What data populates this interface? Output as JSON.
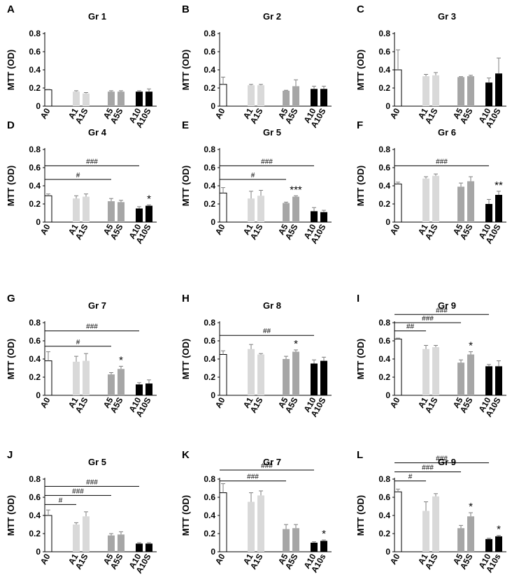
{
  "figure": {
    "ylabel": "MTT (OD)",
    "categories": [
      "A0",
      "A1",
      "A1S",
      "A5",
      "A5S",
      "A10",
      "A10S"
    ],
    "colors": {
      "A0": "#ffffff",
      "A1": "#d9d9d9",
      "A5": "#a6a6a6",
      "A10": "#000000",
      "axis": "#000000",
      "errorbar": "#7f7f7f"
    }
  },
  "chart_data": [
    {
      "panel": "A",
      "title": "Gr 1",
      "type": "bar",
      "ylim": [
        0,
        0.8
      ],
      "ylabel": "MTT (OD)",
      "categories": [
        "A0",
        "A1",
        "A1S",
        "A5",
        "A5S",
        "A10",
        "A10S"
      ],
      "values": [
        0.18,
        0.16,
        0.14,
        0.16,
        0.16,
        0.16,
        0.16
      ],
      "errors": [
        0.005,
        0.01,
        0.01,
        0.01,
        0.01,
        0.01,
        0.03
      ],
      "stars": [],
      "brackets": []
    },
    {
      "panel": "B",
      "title": "Gr 2",
      "type": "bar",
      "ylim": [
        0,
        0.8
      ],
      "ylabel": "MTT (OD)",
      "categories": [
        "A0",
        "A1",
        "A1S",
        "A5",
        "A5S",
        "A10",
        "A10S"
      ],
      "values": [
        0.24,
        0.23,
        0.23,
        0.17,
        0.22,
        0.19,
        0.19
      ],
      "errors": [
        0.08,
        0.01,
        0.01,
        0.005,
        0.07,
        0.03,
        0.03
      ],
      "stars": [],
      "brackets": []
    },
    {
      "panel": "C",
      "title": "Gr 3",
      "type": "bar",
      "ylim": [
        0,
        0.8
      ],
      "ylabel": "MTT (OD)",
      "categories": [
        "A0",
        "A1",
        "A1S",
        "A5",
        "A5S",
        "A10",
        "A10S"
      ],
      "values": [
        0.4,
        0.33,
        0.34,
        0.32,
        0.33,
        0.26,
        0.36
      ],
      "errors": [
        0.22,
        0.02,
        0.03,
        0.005,
        0.01,
        0.05,
        0.17
      ],
      "stars": [],
      "brackets": []
    },
    {
      "panel": "D",
      "title": "Gr 4",
      "type": "bar",
      "ylim": [
        0,
        0.8
      ],
      "ylabel": "MTT (OD)",
      "categories": [
        "A0",
        "A1",
        "A1S",
        "A5",
        "A5S",
        "A10",
        "A10S"
      ],
      "values": [
        0.29,
        0.26,
        0.28,
        0.23,
        0.22,
        0.15,
        0.18
      ],
      "errors": [
        0.02,
        0.03,
        0.03,
        0.03,
        0.02,
        0.02,
        0.01
      ],
      "stars": [
        {
          "index": 6,
          "text": "*"
        }
      ],
      "brackets": [
        {
          "to": "A5",
          "y": 0.47,
          "text": "#"
        },
        {
          "to": "A10",
          "y": 0.62,
          "text": "###"
        }
      ]
    },
    {
      "panel": "E",
      "title": "Gr 5",
      "type": "bar",
      "ylim": [
        0,
        0.8
      ],
      "ylabel": "MTT (OD)",
      "categories": [
        "A0",
        "A1",
        "A1S",
        "A5",
        "A5S",
        "A10",
        "A10S"
      ],
      "values": [
        0.32,
        0.26,
        0.29,
        0.21,
        0.28,
        0.12,
        0.11
      ],
      "errors": [
        0.06,
        0.08,
        0.06,
        0.01,
        0.01,
        0.04,
        0.02
      ],
      "stars": [
        {
          "index": 4,
          "text": "***"
        }
      ],
      "brackets": [
        {
          "to": "A5",
          "y": 0.47,
          "text": "#"
        },
        {
          "to": "A10",
          "y": 0.62,
          "text": "###"
        }
      ]
    },
    {
      "panel": "F",
      "title": "Gr 6",
      "type": "bar",
      "ylim": [
        0,
        0.8
      ],
      "ylabel": "MTT (OD)",
      "categories": [
        "A0",
        "A1",
        "A1S",
        "A5",
        "A5S",
        "A10",
        "A10S"
      ],
      "values": [
        0.42,
        0.48,
        0.51,
        0.39,
        0.45,
        0.2,
        0.3
      ],
      "errors": [
        0.02,
        0.02,
        0.02,
        0.04,
        0.05,
        0.05,
        0.04
      ],
      "stars": [
        {
          "index": 6,
          "text": "**"
        }
      ],
      "brackets": [
        {
          "to": "A10",
          "y": 0.62,
          "text": "###"
        }
      ]
    },
    {
      "panel": "G",
      "title": "Gr 7",
      "type": "bar",
      "ylim": [
        0,
        0.8
      ],
      "ylabel": "MTT (OD)",
      "categories": [
        "A0",
        "A1",
        "A1S",
        "A5",
        "A5S",
        "A10",
        "A10S"
      ],
      "values": [
        0.38,
        0.37,
        0.38,
        0.23,
        0.29,
        0.12,
        0.13
      ],
      "errors": [
        0.1,
        0.06,
        0.08,
        0.02,
        0.03,
        0.02,
        0.04
      ],
      "stars": [
        {
          "index": 4,
          "text": "*"
        }
      ],
      "brackets": [
        {
          "to": "A5",
          "y": 0.54,
          "text": "#"
        },
        {
          "to": "A10",
          "y": 0.71,
          "text": "###"
        }
      ]
    },
    {
      "panel": "H",
      "title": "Gr 8",
      "type": "bar",
      "ylim": [
        0,
        0.8
      ],
      "ylabel": "MTT (OD)",
      "categories": [
        "A0",
        "A1",
        "A1S",
        "A5",
        "A5S",
        "A10",
        "A10S"
      ],
      "values": [
        0.45,
        0.51,
        0.45,
        0.4,
        0.48,
        0.35,
        0.38
      ],
      "errors": [
        0.04,
        0.05,
        0.01,
        0.03,
        0.02,
        0.04,
        0.04
      ],
      "stars": [
        {
          "index": 4,
          "text": "*"
        }
      ],
      "brackets": [
        {
          "to": "A10",
          "y": 0.66,
          "text": "##"
        }
      ]
    },
    {
      "panel": "I",
      "title": "Gr 9",
      "type": "bar",
      "ylim": [
        0,
        0.8
      ],
      "ylabel": "MTT (OD)",
      "categories": [
        "A0",
        "A1",
        "A1S",
        "A5",
        "A5S",
        "A10",
        "A10S"
      ],
      "values": [
        0.62,
        0.51,
        0.53,
        0.36,
        0.45,
        0.32,
        0.32
      ],
      "errors": [
        0.01,
        0.04,
        0.02,
        0.03,
        0.03,
        0.02,
        0.06
      ],
      "stars": [
        {
          "index": 4,
          "text": "*"
        }
      ],
      "brackets": [
        {
          "to": "A1",
          "y": 0.71,
          "text": "##"
        },
        {
          "to": "A5",
          "y": 0.8,
          "text": "###"
        },
        {
          "to": "A10",
          "y": 0.89,
          "text": "###"
        }
      ]
    },
    {
      "panel": "J",
      "title": "Gr 5",
      "type": "bar",
      "ylim": [
        0,
        0.8
      ],
      "ylabel": "MTT (OD)",
      "categories": [
        "A0",
        "A1",
        "A1S",
        "A5",
        "A5S",
        "A10",
        "A10S"
      ],
      "values": [
        0.4,
        0.3,
        0.39,
        0.18,
        0.19,
        0.09,
        0.09
      ],
      "errors": [
        0.06,
        0.02,
        0.05,
        0.02,
        0.03,
        0.01,
        0.01
      ],
      "stars": [],
      "brackets": [
        {
          "to": "A1",
          "y": 0.52,
          "text": "#"
        },
        {
          "to": "A5",
          "y": 0.62,
          "text": "###"
        },
        {
          "to": "A10",
          "y": 0.72,
          "text": "###"
        }
      ]
    },
    {
      "panel": "K",
      "title": "Gr 7",
      "type": "bar",
      "ylim": [
        0,
        0.8
      ],
      "ylabel": "MTT (OD)",
      "categories": [
        "A0",
        "A1",
        "A1S",
        "A5",
        "A5S",
        "A10",
        "A10s"
      ],
      "values": [
        0.65,
        0.55,
        0.62,
        0.25,
        0.26,
        0.1,
        0.12
      ],
      "errors": [
        0.1,
        0.1,
        0.05,
        0.05,
        0.04,
        0.01,
        0.01
      ],
      "stars": [
        {
          "index": 6,
          "text": "*"
        }
      ],
      "brackets": [
        {
          "to": "A5",
          "y": 0.78,
          "text": "###"
        },
        {
          "to": "A10",
          "y": 0.9,
          "text": "###"
        }
      ]
    },
    {
      "panel": "L",
      "title": "Gr 9",
      "type": "bar",
      "ylim": [
        0,
        0.8
      ],
      "ylabel": "MTT (OD)",
      "categories": [
        "A0",
        "A1",
        "A1S",
        "A5",
        "A5S",
        "A10",
        "A10s"
      ],
      "values": [
        0.66,
        0.45,
        0.61,
        0.26,
        0.39,
        0.14,
        0.17
      ],
      "errors": [
        0.03,
        0.1,
        0.03,
        0.03,
        0.04,
        0.01,
        0.01
      ],
      "stars": [
        {
          "index": 4,
          "text": "*"
        },
        {
          "index": 6,
          "text": "*"
        }
      ],
      "brackets": [
        {
          "to": "A1",
          "y": 0.78,
          "text": "#"
        },
        {
          "to": "A5",
          "y": 0.88,
          "text": "###"
        },
        {
          "to": "A10",
          "y": 0.98,
          "text": "###"
        }
      ]
    }
  ]
}
